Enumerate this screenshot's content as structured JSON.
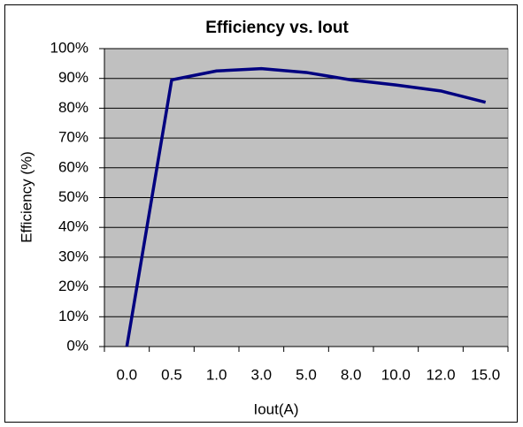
{
  "chart_data": {
    "type": "line",
    "title": "Efficiency vs. Iout",
    "x_label": "Iout(A)",
    "y_label": "Efficiency (%)",
    "categories": [
      "0.0",
      "0.5",
      "1.0",
      "3.0",
      "5.0",
      "8.0",
      "10.0",
      "12.0",
      "15.0"
    ],
    "series": [
      {
        "name": "Efficiency",
        "color": "#000080",
        "values": [
          0,
          89.5,
          92.5,
          93.3,
          92,
          89.5,
          87.8,
          85.8,
          82
        ]
      }
    ],
    "ylim": [
      0,
      100
    ],
    "yticks": [
      {
        "value": 0,
        "label": "0%"
      },
      {
        "value": 10,
        "label": "10%"
      },
      {
        "value": 20,
        "label": "20%"
      },
      {
        "value": 30,
        "label": "30%"
      },
      {
        "value": 40,
        "label": "40%"
      },
      {
        "value": 50,
        "label": "50%"
      },
      {
        "value": 60,
        "label": "60%"
      },
      {
        "value": 70,
        "label": "70%"
      },
      {
        "value": 80,
        "label": "80%"
      },
      {
        "value": 90,
        "label": "90%"
      },
      {
        "value": 100,
        "label": "100%"
      }
    ],
    "grid": true,
    "plot_background": "#c0c0c0"
  }
}
